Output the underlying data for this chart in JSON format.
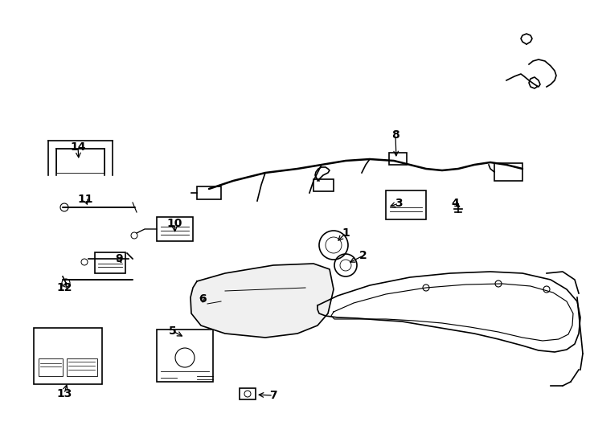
{
  "background_color": "#ffffff",
  "line_color": "#000000",
  "figsize": [
    7.34,
    5.4
  ],
  "dpi": 100
}
